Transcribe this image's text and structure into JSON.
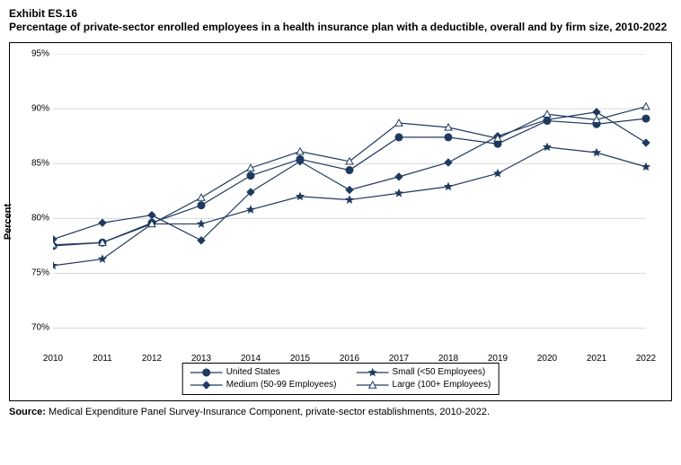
{
  "header": {
    "exhibit": "Exhibit ES.16",
    "title": "Percentage of private-sector enrolled employees in a health insurance plan with a deductible, overall and by firm size, 2010-2022"
  },
  "chart": {
    "type": "line",
    "ylabel": "Percent",
    "ylim": [
      68,
      95
    ],
    "yticks": [
      70,
      75,
      80,
      85,
      90,
      95
    ],
    "ytick_labels": [
      "70%",
      "75%",
      "80%",
      "85%",
      "90%",
      "95%"
    ],
    "xvalues": [
      2010,
      2011,
      2012,
      2013,
      2014,
      2015,
      2016,
      2017,
      2018,
      2019,
      2020,
      2021,
      2022
    ],
    "xtick_labels": [
      "2010",
      "2011",
      "2012",
      "2013",
      "2014",
      "2015",
      "2016",
      "2017",
      "2018",
      "2019",
      "2020",
      "2021",
      "2022"
    ],
    "grid_color": "#d9d9d9",
    "axis_color": "#000000",
    "line_color": "#1f3a5f",
    "line_width": 1.2,
    "marker_size": 4,
    "background_color": "#ffffff",
    "series": [
      {
        "name": "United States",
        "marker": "circle",
        "fill": "#1f3a5f",
        "values": [
          77.5,
          77.8,
          79.6,
          81.2,
          83.9,
          85.4,
          84.4,
          87.4,
          87.4,
          86.8,
          88.9,
          88.6,
          89.1
        ]
      },
      {
        "name": "Small (<50 Employees)",
        "marker": "star",
        "fill": "#1f3a5f",
        "values": [
          75.7,
          76.3,
          79.5,
          79.5,
          80.8,
          82.0,
          81.7,
          82.3,
          82.9,
          84.1,
          86.5,
          86.0,
          84.7
        ]
      },
      {
        "name": "Medium (50-99 Employees)",
        "marker": "diamond",
        "fill": "#1f3a5f",
        "values": [
          78.1,
          79.6,
          80.3,
          78.0,
          82.4,
          85.2,
          82.6,
          83.8,
          85.1,
          87.5,
          89.0,
          89.7,
          86.9
        ]
      },
      {
        "name": "Large (100+ Employees)",
        "marker": "triangle",
        "fill": "#ffffff",
        "values": [
          77.6,
          77.8,
          79.5,
          81.9,
          84.6,
          86.1,
          85.2,
          88.7,
          88.3,
          87.3,
          89.5,
          89.0,
          90.2
        ]
      }
    ]
  },
  "legend": {
    "items": [
      "United States",
      "Small (<50 Employees)",
      "Medium (50-99 Employees)",
      "Large (100+ Employees)"
    ]
  },
  "source": {
    "label": "Source:",
    "text": "Medical Expenditure Panel Survey-Insurance Component, private-sector establishments, 2010-2022."
  }
}
